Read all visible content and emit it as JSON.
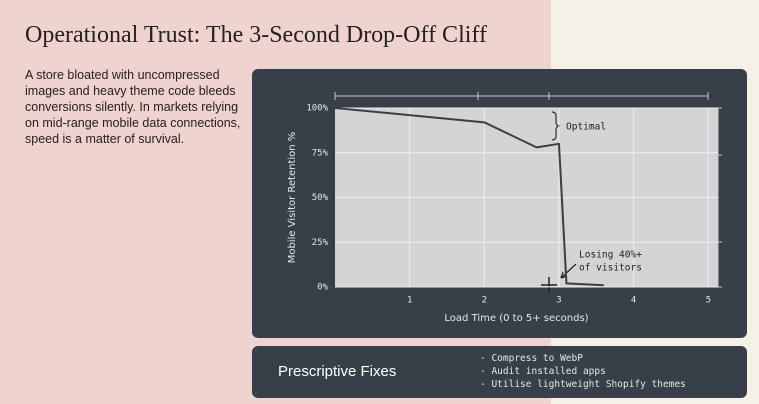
{
  "title": "Operational Trust: The 3-Second Drop-Off Cliff",
  "description": "A store bloated with uncompressed images and heavy theme code bleeds conversions silently. In markets relying on mid-range mobile data connections, speed is a matter of survival.",
  "chart_data": {
    "type": "line",
    "x": [
      0,
      2,
      2.7,
      3,
      3.1,
      3.6
    ],
    "values": [
      100,
      92,
      78,
      80,
      2,
      1
    ],
    "color": "#3a3f46",
    "xlabel": "Load Time (0 to 5+ seconds)",
    "ylabel": "Mobile Visitor Retention %",
    "xlim": [
      0,
      5.13
    ],
    "xticks": [
      1,
      2,
      3,
      4,
      5
    ],
    "ylim": [
      0,
      100
    ],
    "yticks": [
      {
        "value": 0,
        "label": "0%"
      },
      {
        "value": 25,
        "label": "25%"
      },
      {
        "value": 50,
        "label": "50%"
      },
      {
        "value": 75,
        "label": "75%"
      },
      {
        "value": 100,
        "label": "100%"
      }
    ],
    "grid": true,
    "annotations": [
      [
        "Optimal"
      ],
      [
        "Losing 40%+",
        "of visitors"
      ]
    ]
  },
  "fixes": {
    "title": "Prescriptive Fixes",
    "items": [
      "- Compress to WebP",
      "- Audit installed apps",
      "- Utilise lightweight Shopify themes"
    ]
  }
}
